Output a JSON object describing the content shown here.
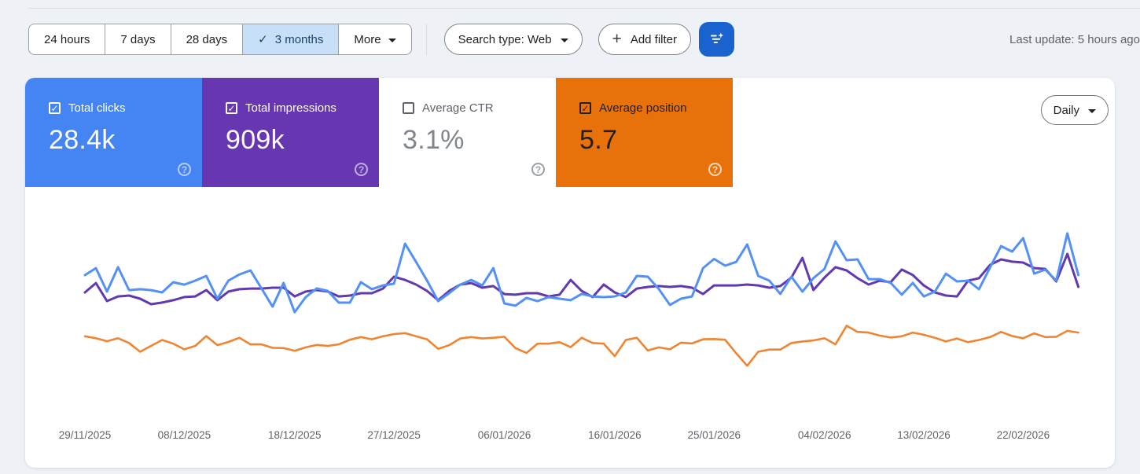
{
  "icons": {
    "check": "✓",
    "question": "?",
    "plus": "+"
  },
  "toolbar": {
    "date_ranges": [
      {
        "label": "24 hours",
        "selected": false
      },
      {
        "label": "7 days",
        "selected": false
      },
      {
        "label": "28 days",
        "selected": false
      },
      {
        "label": "3 months",
        "selected": true
      },
      {
        "label": "More",
        "selected": false
      }
    ],
    "search_type_label": "Search type: Web",
    "add_filter_label": "Add filter",
    "last_update": "Last update: 5 hours ago"
  },
  "metrics": {
    "cards": [
      {
        "id": "total-clicks",
        "label": "Total clicks",
        "value": "28.4k",
        "checked": true,
        "color": "#4484f3"
      },
      {
        "id": "total-impressions",
        "label": "Total impressions",
        "value": "909k",
        "checked": true,
        "color": "#6637b0"
      },
      {
        "id": "average-ctr",
        "label": "Average CTR",
        "value": "3.1%",
        "checked": false,
        "color": "#ffffff"
      },
      {
        "id": "average-position",
        "label": "Average position",
        "value": "5.7",
        "checked": true,
        "color": "#e8710a"
      }
    ],
    "granularity_label": "Daily"
  },
  "chart_data": {
    "type": "line",
    "x_axis": "date (daily, 3 months)",
    "x_tick_labels": [
      "29/11/2025",
      "08/12/2025",
      "18/12/2025",
      "27/12/2025",
      "06/01/2026",
      "16/01/2026",
      "25/01/2026",
      "04/02/2026",
      "13/02/2026",
      "22/02/2026"
    ],
    "x_tick_days": [
      0,
      9,
      19,
      28,
      38,
      48,
      57,
      67,
      76,
      85
    ],
    "legend_position": "metric cards above chart",
    "grid": false,
    "series": [
      {
        "name": "Total clicks",
        "color": "#5491f5",
        "approx_range": [
          230,
          560
        ],
        "values": [
          387,
          415,
          321,
          419,
          327,
          331,
          327,
          318,
          359,
          349,
          365,
          384,
          293,
          365,
          390,
          406,
          334,
          261,
          356,
          239,
          299,
          334,
          324,
          277,
          277,
          359,
          331,
          346,
          353,
          513,
          440,
          365,
          283,
          315,
          349,
          368,
          346,
          415,
          274,
          265,
          296,
          283,
          299,
          293,
          287,
          312,
          302,
          299,
          302,
          318,
          384,
          381,
          331,
          268,
          293,
          302,
          415,
          452,
          425,
          440,
          510,
          384,
          365,
          312,
          381,
          321,
          375,
          412,
          522,
          447,
          450,
          371,
          371,
          356,
          309,
          356,
          302,
          321,
          393,
          362,
          365,
          331,
          418,
          503,
          481,
          535,
          393,
          409,
          365,
          554,
          387
        ]
      },
      {
        "name": "Total impressions",
        "color": "#6139b0",
        "approx_range": [
          8600,
          12600
        ],
        "values": [
          9630,
          10310,
          9000,
          9340,
          9400,
          9170,
          8770,
          8890,
          9060,
          9290,
          9340,
          9800,
          9060,
          9690,
          9860,
          9910,
          9910,
          9970,
          9970,
          9340,
          9690,
          9800,
          9690,
          9340,
          9400,
          9570,
          9570,
          9910,
          10770,
          10540,
          10200,
          9740,
          9060,
          9740,
          10200,
          10310,
          9970,
          10090,
          9510,
          9460,
          9570,
          9570,
          9340,
          9460,
          10540,
          9740,
          9290,
          10200,
          9630,
          9290,
          9910,
          10030,
          10090,
          10030,
          10090,
          9970,
          9510,
          10140,
          10140,
          10140,
          10200,
          10140,
          9970,
          10090,
          10710,
          12140,
          9800,
          10710,
          11460,
          11230,
          10660,
          10200,
          10480,
          10370,
          11290,
          10890,
          10140,
          9630,
          9400,
          9340,
          10480,
          10660,
          11630,
          12030,
          11860,
          11800,
          11400,
          11340,
          10430,
          12430,
          10030
        ]
      },
      {
        "name": "Average position",
        "color": "#ef8532",
        "inverted_axis": true,
        "approx_range": [
          5.0,
          6.6
        ],
        "values": [
          5.41,
          5.49,
          5.61,
          5.49,
          5.68,
          6.04,
          5.8,
          5.56,
          5.71,
          5.94,
          5.8,
          5.4,
          5.77,
          5.64,
          5.47,
          5.74,
          5.74,
          5.88,
          5.89,
          6.0,
          5.86,
          5.76,
          5.8,
          5.74,
          5.55,
          5.44,
          5.53,
          5.41,
          5.32,
          5.28,
          5.41,
          5.53,
          5.92,
          5.77,
          5.5,
          5.44,
          5.5,
          5.47,
          5.43,
          5.89,
          6.09,
          5.71,
          5.71,
          5.65,
          5.85,
          5.47,
          5.68,
          5.71,
          6.22,
          5.56,
          5.47,
          5.99,
          5.86,
          5.94,
          5.67,
          5.7,
          5.53,
          5.52,
          5.55,
          6.1,
          6.61,
          6.04,
          5.95,
          5.95,
          5.68,
          5.62,
          5.58,
          5.49,
          5.74,
          4.98,
          5.23,
          5.26,
          5.38,
          5.46,
          5.41,
          5.26,
          5.35,
          5.47,
          5.62,
          5.5,
          5.65,
          5.56,
          5.44,
          5.23,
          5.4,
          5.49,
          5.29,
          5.44,
          5.43,
          5.19,
          5.26
        ]
      }
    ]
  }
}
